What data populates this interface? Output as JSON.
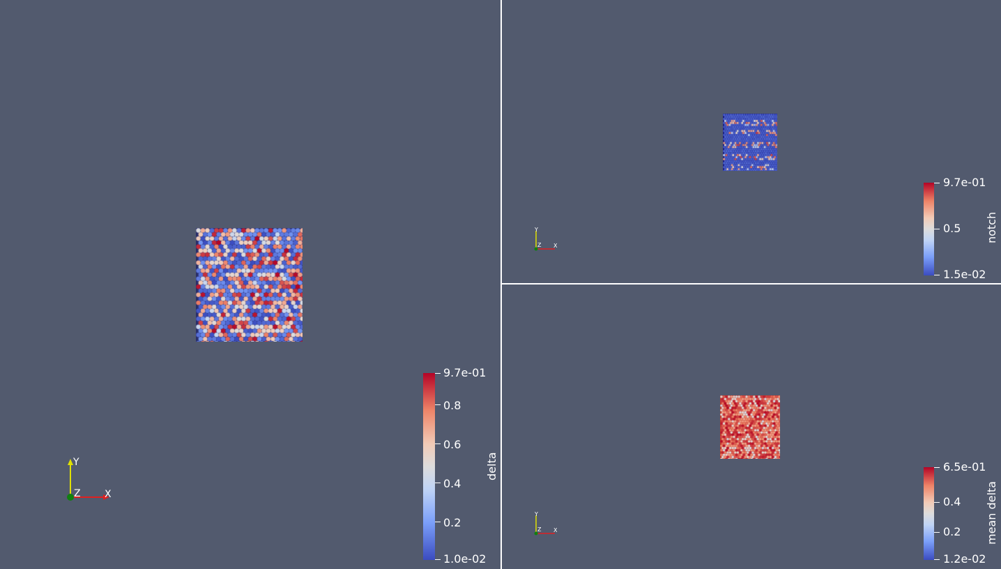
{
  "views": {
    "left": {
      "colorbar": {
        "title": "delta",
        "ticks": [
          "9.7e-01",
          "0.8",
          "0.6",
          "0.4",
          "0.2",
          "1.0e-02"
        ]
      },
      "axes": {
        "x": "X",
        "y": "Y",
        "z": "Z"
      }
    },
    "top_right": {
      "colorbar": {
        "title": "notch",
        "ticks": [
          "9.7e-01",
          "0.5",
          "1.5e-02"
        ]
      },
      "axes": {
        "x": "X",
        "y": "Y",
        "z": "Z"
      }
    },
    "bottom_right": {
      "colorbar": {
        "title": "mean delta",
        "ticks": [
          "6.5e-01",
          "0.4",
          "0.2",
          "1.2e-02"
        ]
      },
      "axes": {
        "x": "X",
        "y": "Y",
        "z": "Z"
      }
    }
  },
  "colors": {
    "background": "#525a6e",
    "separator": "#ffffff",
    "colormap_low": "#3b4cc0",
    "colormap_mid": "#dddcdc",
    "colormap_high": "#b40426",
    "axis_x": "#e02020",
    "axis_y": "#e0e000",
    "axis_z": "#108010"
  }
}
